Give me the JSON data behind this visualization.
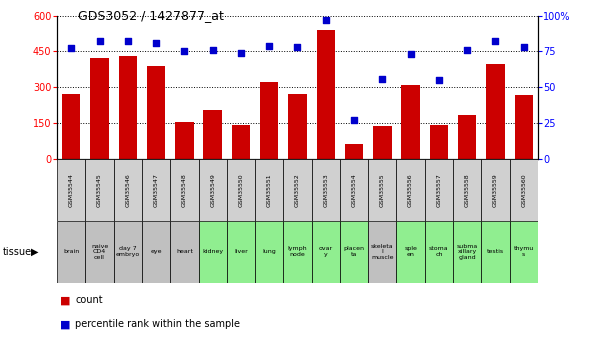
{
  "title": "GDS3052 / 1427877_at",
  "samples": [
    "GSM35544",
    "GSM35545",
    "GSM35546",
    "GSM35547",
    "GSM35548",
    "GSM35549",
    "GSM35550",
    "GSM35551",
    "GSM35552",
    "GSM35553",
    "GSM35554",
    "GSM35555",
    "GSM35556",
    "GSM35557",
    "GSM35558",
    "GSM35559",
    "GSM35560"
  ],
  "tissues": [
    "brain",
    "naive\nCD4\ncell",
    "day 7\nembryо",
    "eye",
    "heart",
    "kidney",
    "liver",
    "lung",
    "lymph\nnode",
    "ovar\ny",
    "placen\nta",
    "skeleta\nl\nmuscle",
    "sple\nen",
    "stoma\nch",
    "subma\nxillary\ngland",
    "testis",
    "thymu\ns"
  ],
  "tissue_colors": [
    "#c0c0c0",
    "#c0c0c0",
    "#c0c0c0",
    "#c0c0c0",
    "#c0c0c0",
    "#90ee90",
    "#90ee90",
    "#90ee90",
    "#90ee90",
    "#90ee90",
    "#90ee90",
    "#c0c0c0",
    "#90ee90",
    "#90ee90",
    "#90ee90",
    "#90ee90",
    "#90ee90"
  ],
  "counts": [
    270,
    420,
    430,
    390,
    155,
    205,
    140,
    320,
    270,
    540,
    60,
    135,
    310,
    140,
    185,
    395,
    265
  ],
  "percentiles": [
    77,
    82,
    82,
    81,
    75,
    76,
    74,
    79,
    78,
    97,
    27,
    56,
    73,
    55,
    76,
    82,
    78
  ],
  "bar_color": "#cc0000",
  "dot_color": "#0000cc",
  "ylim_left": [
    0,
    600
  ],
  "ylim_right": [
    0,
    100
  ],
  "yticks_left": [
    0,
    150,
    300,
    450,
    600
  ],
  "yticks_right": [
    0,
    25,
    50,
    75,
    100
  ],
  "ytick_labels_right": [
    "0",
    "25",
    "50",
    "75",
    "100%"
  ]
}
